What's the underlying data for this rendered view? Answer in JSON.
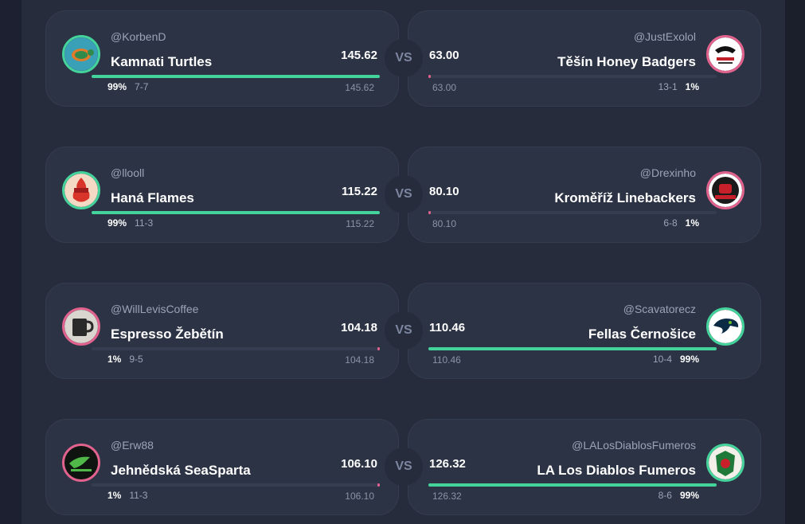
{
  "colors": {
    "win": "#45d39c",
    "lose": "#e2628e",
    "background": "#262c3b",
    "card": "#2c3344"
  },
  "vs_label": "VS",
  "matchups": [
    {
      "home": {
        "handle": "@KorbenD",
        "team": "Kamnati Turtles",
        "score": "145.62",
        "projected": "145.62",
        "win_pct": "99%",
        "record": "7-7",
        "result": "win",
        "bar_fill": 1.0,
        "logo_icon": "turtle-logo-icon"
      },
      "away": {
        "handle": "@JustExolol",
        "team": "Těšín Honey Badgers",
        "score": "63.00",
        "projected": "63.00",
        "win_pct": "1%",
        "record": "13-1",
        "result": "lose",
        "bar_fill": 0.0,
        "logo_icon": "honey-badger-logo-icon"
      }
    },
    {
      "home": {
        "handle": "@llooll",
        "team": "Haná Flames",
        "score": "115.22",
        "projected": "115.22",
        "win_pct": "99%",
        "record": "11-3",
        "result": "win",
        "bar_fill": 1.0,
        "logo_icon": "flames-logo-icon"
      },
      "away": {
        "handle": "@Drexinho",
        "team": "Kroměříž Linebackers",
        "score": "80.10",
        "projected": "80.10",
        "win_pct": "1%",
        "record": "6-8",
        "result": "lose",
        "bar_fill": 0.0,
        "logo_icon": "linebackers-logo-icon"
      }
    },
    {
      "home": {
        "handle": "@WillLevisCoffee",
        "team": "Espresso Žebětín",
        "score": "104.18",
        "projected": "104.18",
        "win_pct": "1%",
        "record": "9-5",
        "result": "lose",
        "bar_fill": 0.0,
        "logo_icon": "coffee-mug-logo-icon"
      },
      "away": {
        "handle": "@Scavatorecz",
        "team": "Fellas Černošice",
        "score": "110.46",
        "projected": "110.46",
        "win_pct": "99%",
        "record": "10-4",
        "result": "win",
        "bar_fill": 1.0,
        "logo_icon": "seahawk-logo-icon"
      }
    },
    {
      "home": {
        "handle": "@Erw88",
        "team": "Jehnědská SeaSparta",
        "score": "106.10",
        "projected": "106.10",
        "win_pct": "1%",
        "record": "11-3",
        "result": "lose",
        "bar_fill": 0.0,
        "logo_icon": "seasparta-logo-icon"
      },
      "away": {
        "handle": "@LALosDiablosFumeros",
        "team": "LA Los Diablos Fumeros",
        "score": "126.32",
        "projected": "126.32",
        "win_pct": "99%",
        "record": "8-6",
        "result": "win",
        "bar_fill": 1.0,
        "logo_icon": "diablos-logo-icon"
      }
    }
  ]
}
